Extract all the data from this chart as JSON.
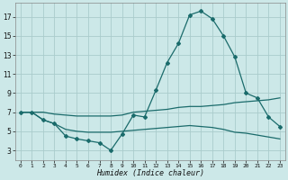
{
  "xlabel": "Humidex (Indice chaleur)",
  "bg_color": "#cce8e8",
  "grid_color": "#aacccc",
  "line_color": "#1a6b6b",
  "x_values": [
    0,
    1,
    2,
    3,
    4,
    5,
    6,
    7,
    8,
    9,
    10,
    11,
    12,
    13,
    14,
    15,
    16,
    17,
    18,
    19,
    20,
    21,
    22,
    23
  ],
  "curve1": [
    7.0,
    7.0,
    6.2,
    5.8,
    4.5,
    4.2,
    4.0,
    3.8,
    3.0,
    4.7,
    6.7,
    6.5,
    9.3,
    12.2,
    14.2,
    17.2,
    17.6,
    16.8,
    15.0,
    12.8,
    9.0,
    8.5,
    6.5,
    5.5
  ],
  "curve2": [
    7.0,
    7.0,
    7.0,
    6.8,
    6.7,
    6.6,
    6.6,
    6.6,
    6.6,
    6.7,
    7.0,
    7.1,
    7.2,
    7.3,
    7.5,
    7.6,
    7.6,
    7.7,
    7.8,
    8.0,
    8.1,
    8.2,
    8.3,
    8.5
  ],
  "curve3": [
    7.0,
    7.0,
    6.2,
    5.8,
    5.2,
    5.0,
    4.9,
    4.9,
    4.9,
    5.0,
    5.1,
    5.2,
    5.3,
    5.4,
    5.5,
    5.6,
    5.5,
    5.4,
    5.2,
    4.9,
    4.8,
    4.6,
    4.4,
    4.2
  ],
  "ylim": [
    2.0,
    18.5
  ],
  "xlim": [
    -0.5,
    23.5
  ],
  "yticks": [
    3,
    5,
    7,
    9,
    11,
    13,
    15,
    17
  ],
  "xticks": [
    0,
    1,
    2,
    3,
    4,
    5,
    6,
    7,
    8,
    9,
    10,
    11,
    12,
    13,
    14,
    15,
    16,
    17,
    18,
    19,
    20,
    21,
    22,
    23
  ],
  "xtick_labels": [
    "0",
    "1",
    "2",
    "3",
    "4",
    "5",
    "6",
    "7",
    "8",
    "9",
    "10",
    "11",
    "12",
    "13",
    "14",
    "15",
    "16",
    "17",
    "18",
    "19",
    "20",
    "21",
    "22",
    "23"
  ]
}
